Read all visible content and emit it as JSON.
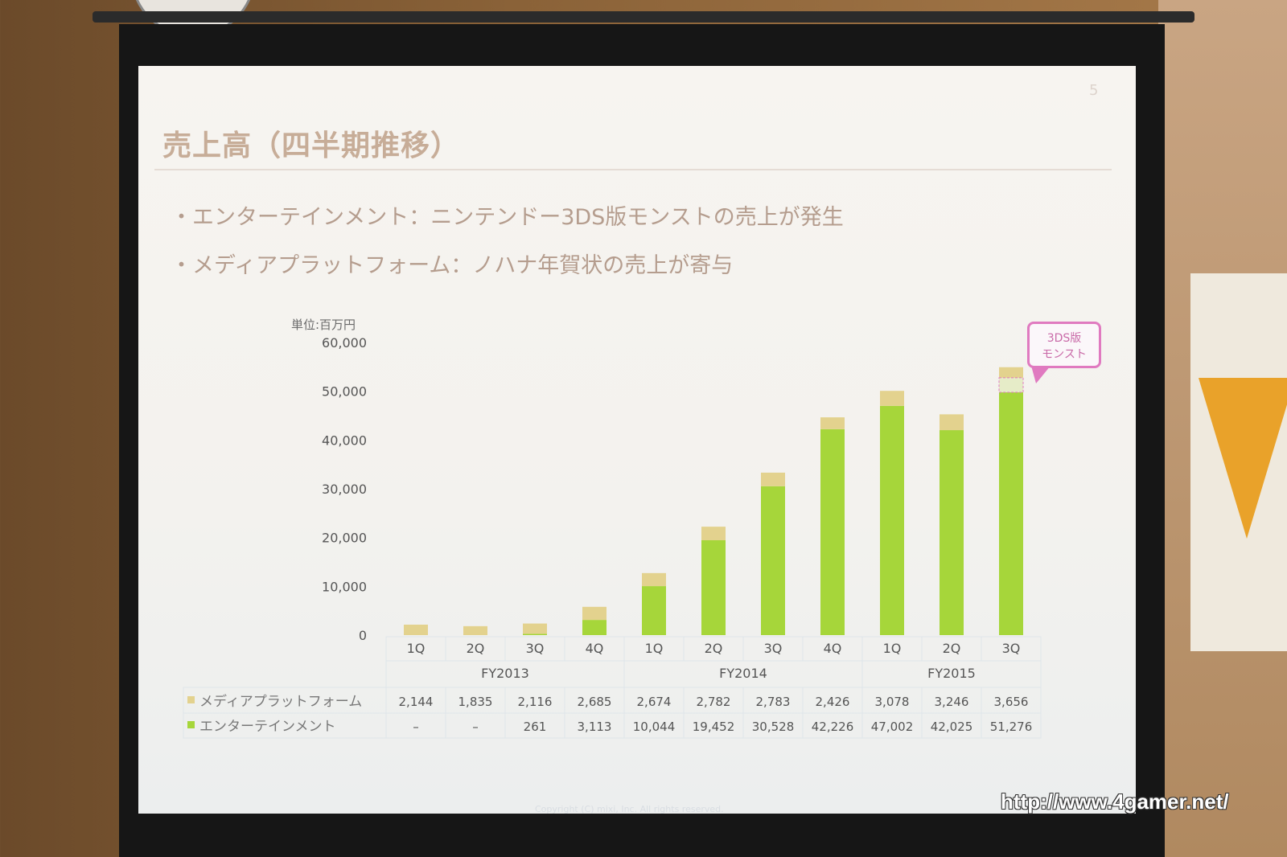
{
  "slide": {
    "page_number": "5",
    "title": "売上高（四半期推移）",
    "bullets": [
      "・エンターテインメント：ニンテンドー3DS版モンストの売上が発生",
      "・メディアプラットフォーム：ノハナ年賀状の売上が寄与"
    ],
    "callout": [
      "3DS版",
      "モンスト"
    ],
    "copyright": "Copyright (C) mixi, Inc. All rights reserved."
  },
  "watermark": "http://www.4gamer.net/",
  "colors": {
    "media": "#e3d28e",
    "entertainment": "#a6d63a",
    "callout": "#e07ac0"
  },
  "chart_data": {
    "type": "bar",
    "stacked": true,
    "unit_label": "単位:百万円",
    "ylim": [
      0,
      60000
    ],
    "yticks": [
      "0",
      "10,000",
      "20,000",
      "30,000",
      "40,000",
      "50,000",
      "60,000"
    ],
    "categories": [
      "1Q",
      "2Q",
      "3Q",
      "4Q",
      "1Q",
      "2Q",
      "3Q",
      "4Q",
      "1Q",
      "2Q",
      "3Q"
    ],
    "groups": [
      {
        "label": "FY2013",
        "count": 4
      },
      {
        "label": "FY2014",
        "count": 4
      },
      {
        "label": "FY2015",
        "count": 3
      }
    ],
    "series": [
      {
        "name": "エンターテインメント",
        "values": [
          0,
          0,
          261,
          3113,
          10044,
          19452,
          30528,
          42226,
          47002,
          42025,
          51276
        ],
        "labels": [
          "–",
          "–",
          "261",
          "3,113",
          "10,044",
          "19,452",
          "30,528",
          "42,226",
          "47,002",
          "42,025",
          "51,276"
        ]
      },
      {
        "name": "メディアプラットフォーム",
        "values": [
          2144,
          1835,
          2116,
          2685,
          2674,
          2782,
          2783,
          2426,
          3078,
          3246,
          3656
        ],
        "labels": [
          "2,144",
          "1,835",
          "2,116",
          "2,685",
          "2,674",
          "2,782",
          "2,783",
          "2,426",
          "3,078",
          "3,246",
          "3,656"
        ]
      }
    ],
    "legend": "table-below"
  }
}
